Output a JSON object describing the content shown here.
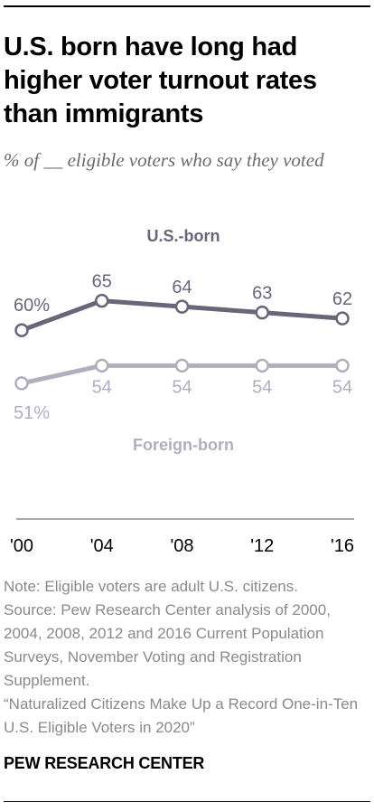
{
  "title": "U.S. born have long had higher voter turnout rates than immigrants",
  "subtitle": "% of __ eligible voters who say they voted",
  "chart_data": {
    "type": "line",
    "categories": [
      "'00",
      "'04",
      "'08",
      "'12",
      "'16"
    ],
    "x": [
      2000,
      2004,
      2008,
      2012,
      2016
    ],
    "ylim": [
      45,
      70
    ],
    "grid": false,
    "legend": "inline labels",
    "series": [
      {
        "name": "U.S.-born",
        "values": [
          60,
          65,
          64,
          63,
          62
        ],
        "labels": [
          "60%",
          "65",
          "64",
          "63",
          "62"
        ],
        "color": "#6c6478"
      },
      {
        "name": "Foreign-born",
        "values": [
          51,
          54,
          54,
          54,
          54
        ],
        "labels": [
          "51%",
          "54",
          "54",
          "54",
          "54"
        ],
        "color": "#b4adbf"
      }
    ]
  },
  "notes": {
    "note": "Note: Eligible voters are adult U.S. citizens.",
    "source": "Source: Pew Research Center analysis of 2000, 2004, 2008, 2012 and 2016 Current Population Surveys, November Voting and Registration Supplement.",
    "report": "“Naturalized Citizens Make Up a Record One-in-Ten U.S. Eligible Voters in 2020”"
  },
  "branding": "PEW RESEARCH CENTER"
}
